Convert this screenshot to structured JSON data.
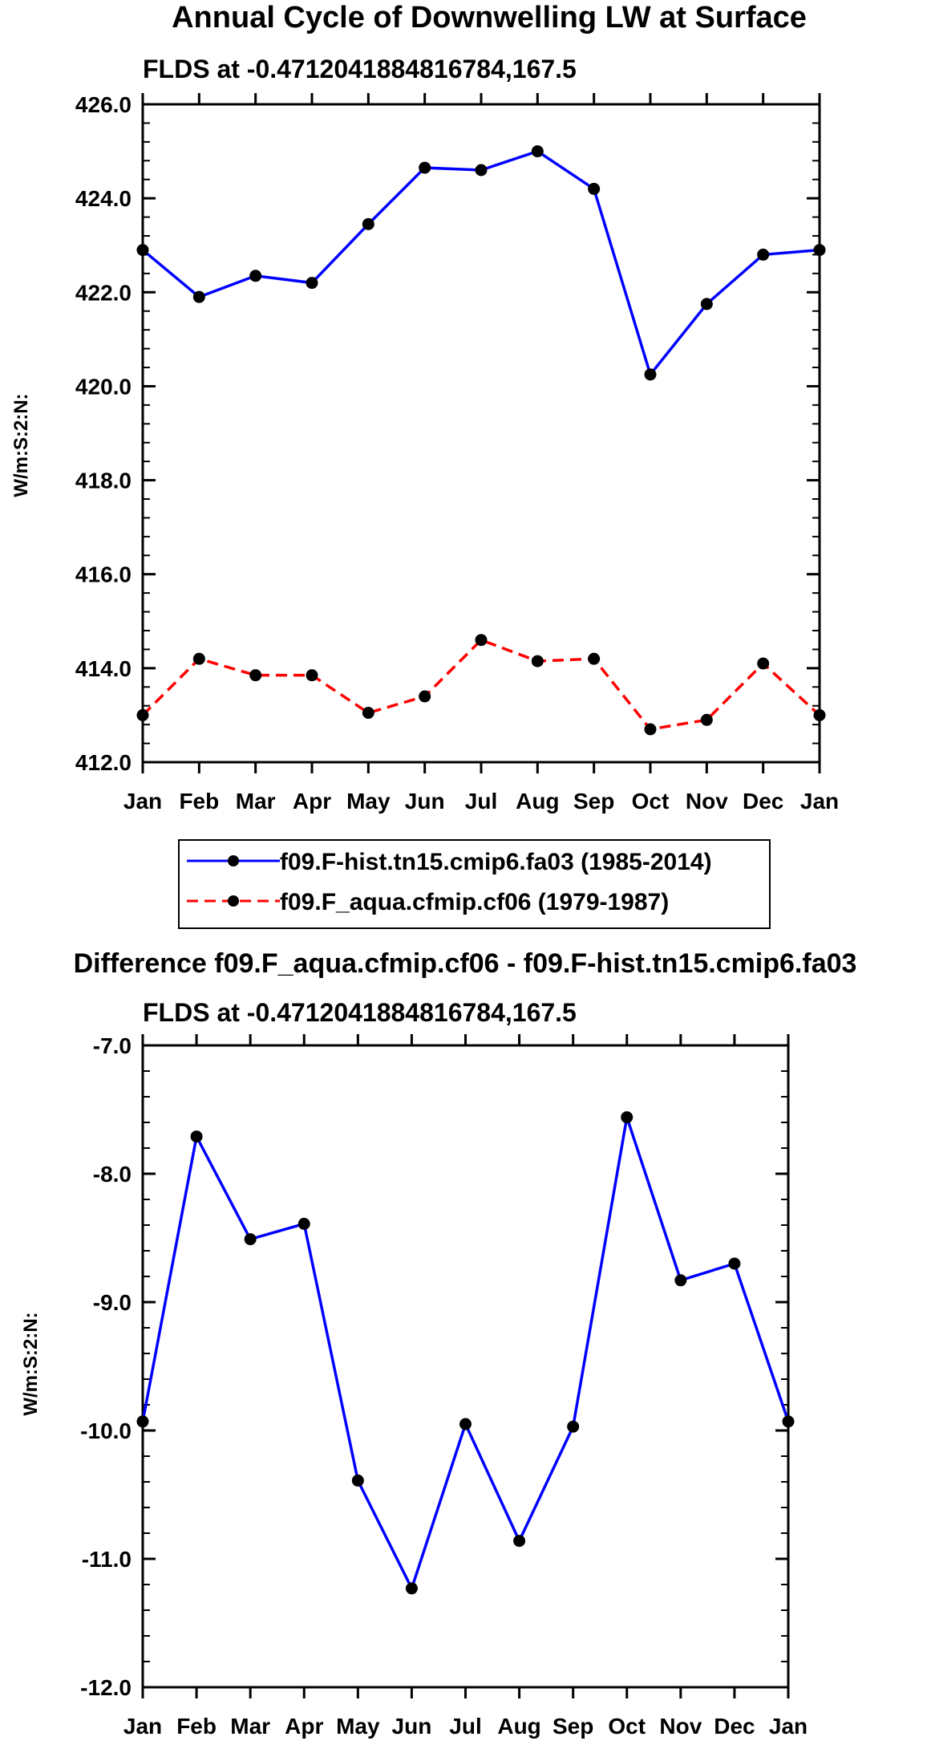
{
  "chart_data": [
    {
      "type": "line",
      "title": "Annual Cycle of Downwelling LW at Surface",
      "subtitle": "FLDS at -0.4712041884816784,167.5",
      "xlabel": "",
      "ylabel": "W/m:S:2:N:",
      "categories": [
        "Jan",
        "Feb",
        "Mar",
        "Apr",
        "May",
        "Jun",
        "Jul",
        "Aug",
        "Sep",
        "Oct",
        "Nov",
        "Dec",
        "Jan"
      ],
      "ylim": [
        412.0,
        426.0
      ],
      "yticks": [
        "412.0",
        "414.0",
        "416.0",
        "418.0",
        "420.0",
        "422.0",
        "424.0",
        "426.0"
      ],
      "ytick_values": [
        412,
        414,
        416,
        418,
        420,
        422,
        424,
        426
      ],
      "series": [
        {
          "name": "f09.F-hist.tn15.cmip6.fa03 (1985-2014)",
          "color": "#0000ff",
          "dash": "solid",
          "values": [
            422.9,
            421.9,
            422.35,
            422.2,
            423.45,
            424.65,
            424.6,
            425.0,
            424.2,
            420.25,
            421.75,
            422.8,
            422.9
          ]
        },
        {
          "name": "f09.F_aqua.cfmip.cf06 (1979-1987)",
          "color": "#ff0000",
          "dash": "dashed",
          "values": [
            413.0,
            414.2,
            413.85,
            413.85,
            413.05,
            413.4,
            414.6,
            414.15,
            414.2,
            412.7,
            412.9,
            414.1,
            413.0
          ]
        }
      ],
      "legend": {
        "placement": "bottom"
      }
    },
    {
      "type": "line",
      "title": "Difference f09.F_aqua.cfmip.cf06 - f09.F-hist.tn15.cmip6.fa03",
      "subtitle": "FLDS at -0.4712041884816784,167.5",
      "xlabel": "",
      "ylabel": "W/m:S:2:N:",
      "categories": [
        "Jan",
        "Feb",
        "Mar",
        "Apr",
        "May",
        "Jun",
        "Jul",
        "Aug",
        "Sep",
        "Oct",
        "Nov",
        "Dec",
        "Jan"
      ],
      "ylim": [
        -12.0,
        -7.0
      ],
      "yticks": [
        "-12.0",
        "-11.0",
        "-10.0",
        "-9.0",
        "-8.0",
        "-7.0"
      ],
      "ytick_values": [
        -12,
        -11,
        -10,
        -9,
        -8,
        -7
      ],
      "series": [
        {
          "name": "Difference",
          "color": "#0000ff",
          "dash": "solid",
          "values": [
            -9.93,
            -7.71,
            -8.51,
            -8.39,
            -10.39,
            -11.23,
            -9.95,
            -10.86,
            -9.97,
            -7.56,
            -8.83,
            -8.7,
            -9.93
          ]
        }
      ]
    }
  ]
}
